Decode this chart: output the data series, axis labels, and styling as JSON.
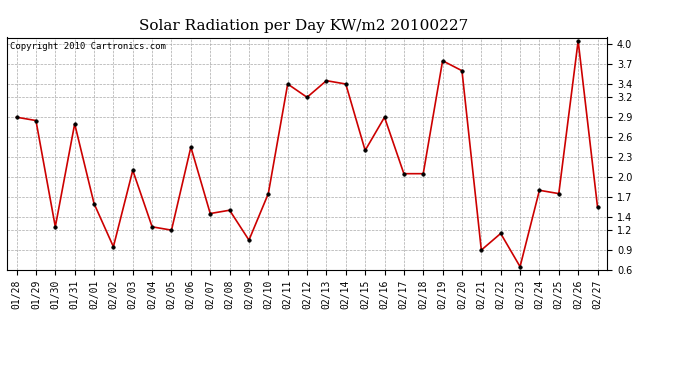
{
  "title": "Solar Radiation per Day KW/m2 20100227",
  "copyright_text": "Copyright 2010 Cartronics.com",
  "dates": [
    "01/28",
    "01/29",
    "01/30",
    "01/31",
    "02/01",
    "02/02",
    "02/03",
    "02/04",
    "02/05",
    "02/06",
    "02/07",
    "02/08",
    "02/09",
    "02/10",
    "02/11",
    "02/12",
    "02/13",
    "02/14",
    "02/15",
    "02/16",
    "02/17",
    "02/18",
    "02/19",
    "02/20",
    "02/21",
    "02/22",
    "02/23",
    "02/24",
    "02/25",
    "02/26",
    "02/27"
  ],
  "values": [
    2.9,
    2.85,
    1.25,
    2.8,
    1.6,
    0.95,
    2.1,
    1.25,
    1.2,
    2.45,
    1.45,
    1.5,
    1.05,
    1.75,
    3.4,
    3.2,
    3.45,
    3.4,
    2.4,
    2.9,
    2.05,
    2.05,
    3.75,
    3.6,
    0.9,
    1.15,
    0.65,
    1.8,
    1.75,
    4.05,
    1.55
  ],
  "line_color": "#cc0000",
  "marker_color": "#000000",
  "bg_color": "#ffffff",
  "grid_color": "#aaaaaa",
  "ylim": [
    0.6,
    4.1
  ],
  "yticks": [
    0.6,
    0.9,
    1.2,
    1.4,
    1.7,
    2.0,
    2.3,
    2.6,
    2.9,
    3.2,
    3.4,
    3.7,
    4.0
  ],
  "title_fontsize": 11,
  "tick_fontsize": 7,
  "copyright_fontsize": 6.5
}
